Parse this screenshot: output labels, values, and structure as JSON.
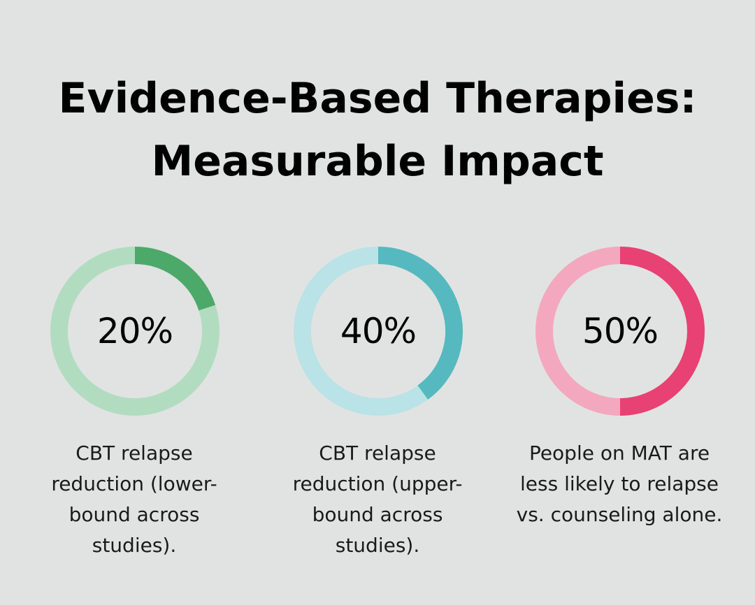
{
  "title": {
    "line1": "Evidence-Based Therapies:",
    "line2": "Measurable Impact"
  },
  "chart_data": [
    {
      "type": "pie",
      "style": "donut",
      "value": 20,
      "label": "20%",
      "description_lines": [
        "CBT relapse",
        "reduction (lower-",
        "bound across",
        "studies)."
      ],
      "colors": {
        "fill": "#4ca96a",
        "track": "#b2dcc0"
      }
    },
    {
      "type": "pie",
      "style": "donut",
      "value": 40,
      "label": "40%",
      "description_lines": [
        "CBT relapse",
        "reduction (upper-",
        "bound across",
        "studies)."
      ],
      "colors": {
        "fill": "#56b9bf",
        "track": "#b9e3e6"
      }
    },
    {
      "type": "pie",
      "style": "donut",
      "value": 50,
      "label": "50%",
      "description_lines": [
        "People on MAT are",
        "less likely to relapse",
        "vs. counseling alone."
      ],
      "colors": {
        "fill": "#e84173",
        "track": "#f3a8c0"
      }
    }
  ]
}
